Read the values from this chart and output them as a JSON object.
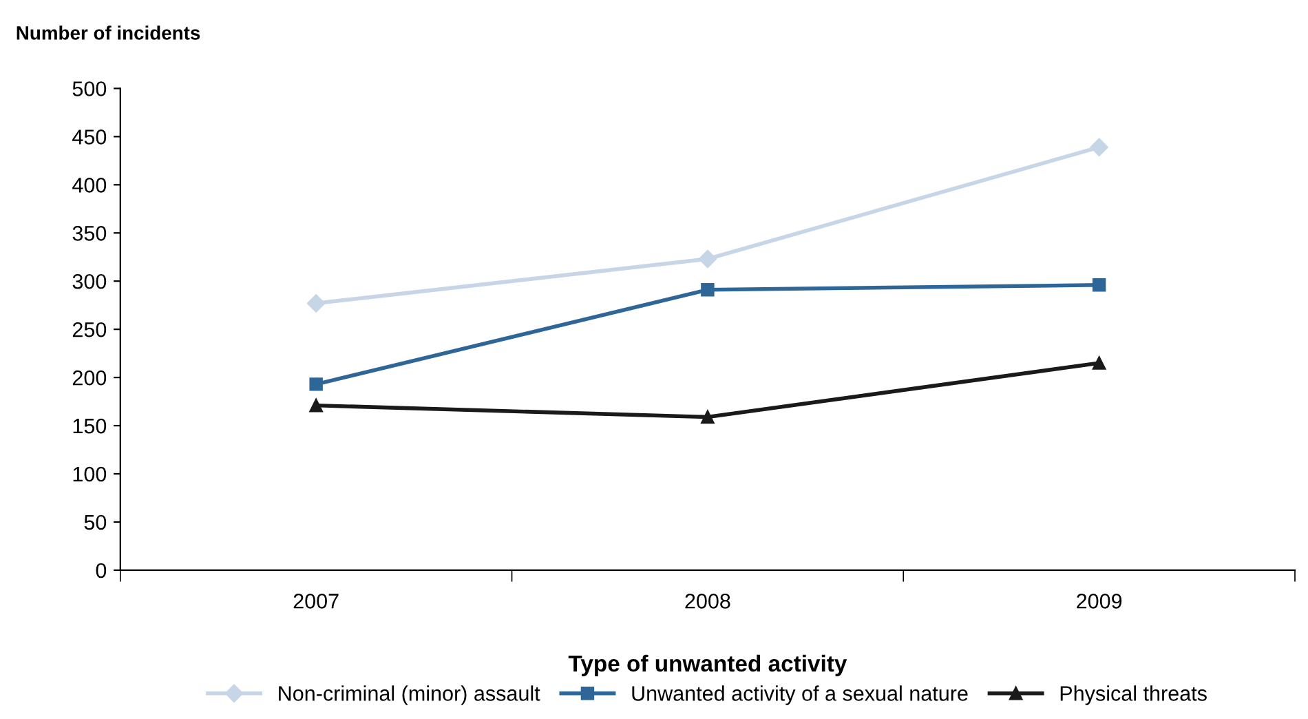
{
  "chart_data": {
    "type": "line",
    "ylabel": "Number of incidents",
    "xlabel": "Type of unwanted activity",
    "categories": [
      "2007",
      "2008",
      "2009"
    ],
    "series": [
      {
        "name": "Non-criminal (minor) assault",
        "color": "#c6d6e6",
        "marker": "diamond",
        "values": [
          277,
          323,
          439
        ]
      },
      {
        "name": "Unwanted activity of a sexual nature",
        "color": "#2e6697",
        "marker": "square",
        "values": [
          193,
          291,
          296
        ]
      },
      {
        "name": "Physical threats",
        "color": "#1a1a1a",
        "marker": "triangle",
        "values": [
          171,
          159,
          215
        ]
      }
    ],
    "ylim": [
      0,
      500
    ],
    "yticks": [
      0,
      50,
      100,
      150,
      200,
      250,
      300,
      350,
      400,
      450,
      500
    ],
    "grid": false,
    "legend": "bottom",
    "line_style": "solid"
  }
}
